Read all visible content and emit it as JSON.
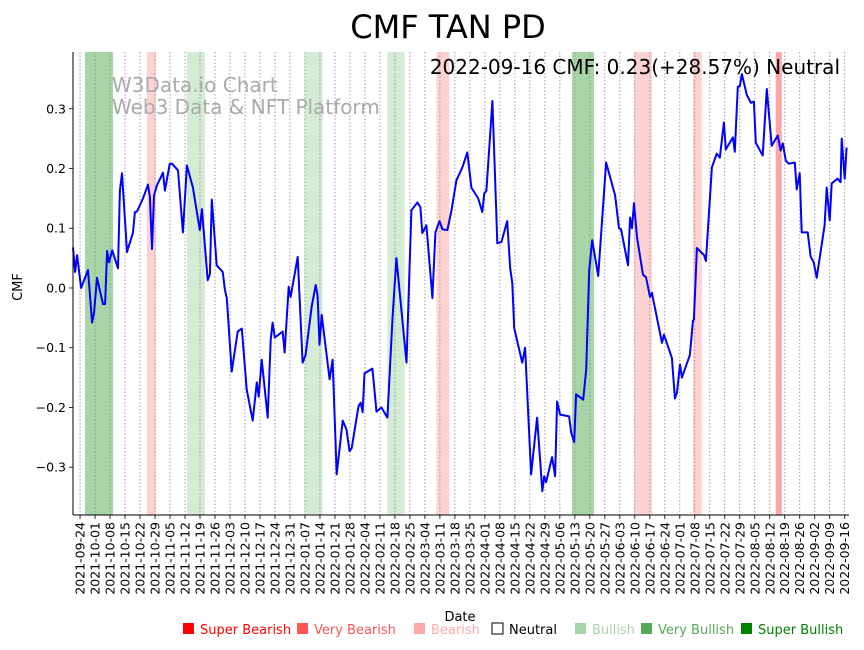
{
  "chart_data": {
    "type": "line",
    "title": "CMF TAN PD",
    "xlabel": "Date",
    "ylabel": "CMF",
    "annotation": "2022-09-16 CMF: 0.23(+28.57%) Neutral",
    "watermark": [
      "W3Data.io Chart",
      "Web3 Data & NFT Platform"
    ],
    "start_date": "2021-09-24",
    "x_unit": "days since start_date",
    "xlim": [
      -3.3,
      359
    ],
    "ylim": [
      -0.38,
      0.395
    ],
    "yticks": [
      -0.3,
      -0.2,
      -0.1,
      0.0,
      0.1,
      0.2,
      0.3
    ],
    "ytick_labels": [
      "−0.3",
      "−0.2",
      "−0.1",
      "0.0",
      "0.1",
      "0.2",
      "0.3"
    ],
    "xtick_labels": [
      "2021-09-24",
      "2021-10-01",
      "2021-10-08",
      "2021-10-15",
      "2021-10-22",
      "2021-10-29",
      "2021-11-05",
      "2021-11-12",
      "2021-11-19",
      "2021-11-26",
      "2021-12-03",
      "2021-12-10",
      "2021-12-17",
      "2021-12-24",
      "2021-12-31",
      "2022-01-07",
      "2022-01-14",
      "2022-01-21",
      "2022-01-28",
      "2022-02-04",
      "2022-02-11",
      "2022-02-18",
      "2022-02-25",
      "2022-03-04",
      "2022-03-11",
      "2022-03-18",
      "2022-03-25",
      "2022-04-01",
      "2022-04-08",
      "2022-04-15",
      "2022-04-22",
      "2022-04-29",
      "2022-05-06",
      "2022-05-13",
      "2022-05-20",
      "2022-05-27",
      "2022-06-03",
      "2022-06-10",
      "2022-06-17",
      "2022-06-24",
      "2022-07-01",
      "2022-07-08",
      "2022-07-15",
      "2022-07-22",
      "2022-07-29",
      "2022-08-05",
      "2022-08-12",
      "2022-08-19",
      "2022-08-26",
      "2022-09-02",
      "2022-09-09",
      "2022-09-16"
    ],
    "grid": "vertical dotted at weekly ticks",
    "series": [
      {
        "name": "CMF",
        "color": "#0000ff",
        "points": [
          [
            -3.3,
            0.068
          ],
          [
            -2.3,
            0.027
          ],
          [
            -1.4,
            0.055
          ],
          [
            0.5,
            0
          ],
          [
            3.7,
            0.03
          ],
          [
            5.6,
            -0.058
          ],
          [
            6.5,
            -0.042
          ],
          [
            7.9,
            0.017
          ],
          [
            10.7,
            -0.027
          ],
          [
            11.7,
            -0.027
          ],
          [
            12.6,
            0.062
          ],
          [
            13.5,
            0.043
          ],
          [
            15,
            0.063
          ],
          [
            17.7,
            0.033
          ],
          [
            18.6,
            0.163
          ],
          [
            19.6,
            0.192
          ],
          [
            21.9,
            0.06
          ],
          [
            24.7,
            0.093
          ],
          [
            25.6,
            0.127
          ],
          [
            26.6,
            0.128
          ],
          [
            29.4,
            0.15
          ],
          [
            31.7,
            0.173
          ],
          [
            32.6,
            0.152
          ],
          [
            33.6,
            0.065
          ],
          [
            34.5,
            0.155
          ],
          [
            35.9,
            0.172
          ],
          [
            38.7,
            0.193
          ],
          [
            39.6,
            0.163
          ],
          [
            41.9,
            0.208
          ],
          [
            42.9,
            0.208
          ],
          [
            45.7,
            0.197
          ],
          [
            48,
            0.093
          ],
          [
            49.9,
            0.205
          ],
          [
            52.7,
            0.168
          ],
          [
            55.9,
            0.097
          ],
          [
            56.9,
            0.132
          ],
          [
            59.6,
            0.013
          ],
          [
            60.6,
            0.023
          ],
          [
            61.5,
            0.148
          ],
          [
            63.8,
            0.038
          ],
          [
            66.6,
            0.027
          ],
          [
            67.6,
            -0.003
          ],
          [
            68.5,
            -0.017
          ],
          [
            70.8,
            -0.14
          ],
          [
            73.6,
            -0.073
          ],
          [
            75.5,
            -0.068
          ],
          [
            77.8,
            -0.17
          ],
          [
            80.6,
            -0.222
          ],
          [
            82.5,
            -0.158
          ],
          [
            83.4,
            -0.182
          ],
          [
            84.8,
            -0.12
          ],
          [
            87.6,
            -0.217
          ],
          [
            89,
            -0.087
          ],
          [
            89.9,
            -0.058
          ],
          [
            90.9,
            -0.083
          ],
          [
            94.6,
            -0.073
          ],
          [
            95.5,
            -0.108
          ],
          [
            97.4,
            0.002
          ],
          [
            98.3,
            -0.015
          ],
          [
            101.6,
            0.052
          ],
          [
            103.9,
            -0.125
          ],
          [
            105.3,
            -0.112
          ],
          [
            108.1,
            -0.032
          ],
          [
            110,
            0.005
          ],
          [
            110.9,
            -0.013
          ],
          [
            111.8,
            -0.095
          ],
          [
            112.8,
            -0.045
          ],
          [
            116.5,
            -0.153
          ],
          [
            117.9,
            -0.12
          ],
          [
            119.8,
            -0.312
          ],
          [
            122.6,
            -0.222
          ],
          [
            124.4,
            -0.237
          ],
          [
            125.8,
            -0.273
          ],
          [
            126.8,
            -0.268
          ],
          [
            130,
            -0.198
          ],
          [
            131,
            -0.192
          ],
          [
            131.9,
            -0.208
          ],
          [
            132.8,
            -0.143
          ],
          [
            136.5,
            -0.135
          ],
          [
            138.4,
            -0.207
          ],
          [
            140.7,
            -0.2
          ],
          [
            143.5,
            -0.217
          ],
          [
            145.9,
            -0.048
          ],
          [
            147.7,
            0.05
          ],
          [
            152.4,
            -0.125
          ],
          [
            154.7,
            0.13
          ],
          [
            157.5,
            0.143
          ],
          [
            158.9,
            0.135
          ],
          [
            159.8,
            0.092
          ],
          [
            161.7,
            0.105
          ],
          [
            164.5,
            -0.017
          ],
          [
            165.9,
            0.093
          ],
          [
            167.8,
            0.112
          ],
          [
            169.2,
            0.098
          ],
          [
            171.5,
            0.097
          ],
          [
            173.4,
            0.13
          ],
          [
            175.7,
            0.18
          ],
          [
            178.5,
            0.202
          ],
          [
            180.8,
            0.227
          ],
          [
            182.7,
            0.168
          ],
          [
            185.9,
            0.15
          ],
          [
            187.8,
            0.127
          ],
          [
            188.7,
            0.158
          ],
          [
            189.7,
            0.163
          ],
          [
            192.5,
            0.313
          ],
          [
            194.3,
            0.13
          ],
          [
            194.8,
            0.075
          ],
          [
            196.7,
            0.077
          ],
          [
            199.4,
            0.112
          ],
          [
            200.8,
            0.033
          ],
          [
            201.8,
            0.008
          ],
          [
            202.7,
            -0.067
          ],
          [
            206.4,
            -0.125
          ],
          [
            207.8,
            -0.1
          ],
          [
            210.6,
            -0.312
          ],
          [
            213.4,
            -0.217
          ],
          [
            215.8,
            -0.34
          ],
          [
            216.7,
            -0.315
          ],
          [
            217.6,
            -0.325
          ],
          [
            220.4,
            -0.283
          ],
          [
            221.8,
            -0.315
          ],
          [
            222.7,
            -0.19
          ],
          [
            224.1,
            -0.212
          ],
          [
            228.3,
            -0.215
          ],
          [
            229.3,
            -0.242
          ],
          [
            230.7,
            -0.258
          ],
          [
            231.6,
            -0.178
          ],
          [
            234.9,
            -0.187
          ],
          [
            236.3,
            -0.137
          ],
          [
            237.7,
            0.03
          ],
          [
            239.1,
            0.08
          ],
          [
            241.9,
            0.02
          ],
          [
            245.6,
            0.21
          ],
          [
            249.8,
            0.155
          ],
          [
            251.6,
            0.1
          ],
          [
            252.6,
            0.098
          ],
          [
            255.8,
            0.038
          ],
          [
            256.8,
            0.118
          ],
          [
            257.7,
            0.1
          ],
          [
            258.6,
            0.142
          ],
          [
            260,
            0.085
          ],
          [
            262.8,
            0.022
          ],
          [
            264.2,
            0.018
          ],
          [
            266.1,
            -0.015
          ],
          [
            267,
            -0.008
          ],
          [
            271.7,
            -0.092
          ],
          [
            272.6,
            -0.078
          ],
          [
            276.3,
            -0.117
          ],
          [
            277.7,
            -0.185
          ],
          [
            278.7,
            -0.175
          ],
          [
            280.1,
            -0.128
          ],
          [
            281,
            -0.15
          ],
          [
            284.7,
            -0.112
          ],
          [
            286.1,
            -0.055
          ],
          [
            286.6,
            -0.053
          ],
          [
            288,
            0.067
          ],
          [
            291.3,
            0.055
          ],
          [
            292.2,
            0.045
          ],
          [
            295,
            0.202
          ],
          [
            297.3,
            0.225
          ],
          [
            298.7,
            0.218
          ],
          [
            300.6,
            0.277
          ],
          [
            301.5,
            0.232
          ],
          [
            304.8,
            0.252
          ],
          [
            305.7,
            0.228
          ],
          [
            307.1,
            0.337
          ],
          [
            308,
            0.338
          ],
          [
            309,
            0.358
          ],
          [
            311.3,
            0.323
          ],
          [
            313.2,
            0.31
          ],
          [
            314.6,
            0.312
          ],
          [
            315.5,
            0.243
          ],
          [
            318.7,
            0.222
          ],
          [
            320.6,
            0.333
          ],
          [
            322.9,
            0.238
          ],
          [
            325.7,
            0.255
          ],
          [
            327.1,
            0.23
          ],
          [
            328.1,
            0.242
          ],
          [
            329.5,
            0.213
          ],
          [
            330.9,
            0.208
          ],
          [
            333.7,
            0.21
          ],
          [
            334.6,
            0.165
          ],
          [
            336,
            0.192
          ],
          [
            336.9,
            0.093
          ],
          [
            339.7,
            0.093
          ],
          [
            341.1,
            0.052
          ],
          [
            342.5,
            0.043
          ],
          [
            343.9,
            0.017
          ],
          [
            347.6,
            0.105
          ],
          [
            348.6,
            0.168
          ],
          [
            350,
            0.113
          ],
          [
            350.9,
            0.175
          ],
          [
            353.7,
            0.183
          ],
          [
            355.1,
            0.177
          ],
          [
            355.6,
            0.25
          ],
          [
            357,
            0.183
          ],
          [
            357.9,
            0.235
          ]
        ]
      }
    ],
    "signal_bands": [
      {
        "signal": "Very Bullish",
        "start": 2.3,
        "end": 15.4
      },
      {
        "signal": "Bearish",
        "start": 31.2,
        "end": 35.4
      },
      {
        "signal": "Bullish",
        "start": 49.9,
        "end": 58.3
      },
      {
        "signal": "Bullish",
        "start": 104.8,
        "end": 113.2
      },
      {
        "signal": "Bullish",
        "start": 143.5,
        "end": 151.5
      },
      {
        "signal": "Bearish",
        "start": 166.4,
        "end": 172.4
      },
      {
        "signal": "Very Bullish",
        "start": 229.7,
        "end": 240
      },
      {
        "signal": "Bearish",
        "start": 258.6,
        "end": 267
      },
      {
        "signal": "Bearish",
        "start": 286.1,
        "end": 290.3
      },
      {
        "signal": "Very Bearish",
        "start": 324.8,
        "end": 327.6
      }
    ],
    "legend": {
      "placement": "bottom",
      "items": [
        {
          "label": "Super Bearish",
          "color": "#ff0000",
          "text_color": "#ff0000"
        },
        {
          "label": "Very Bearish",
          "color": "#ff5555",
          "text_color": "#ff5555"
        },
        {
          "label": "Bearish",
          "color": "#ffaaaa",
          "text_color": "#ffaaaa"
        },
        {
          "label": "Neutral",
          "color": "#ffffff",
          "text_color": "#000000"
        },
        {
          "label": "Bullish",
          "color": "#aad5aa",
          "text_color": "#aad5aa"
        },
        {
          "label": "Very Bullish",
          "color": "#55aa55",
          "text_color": "#55aa55"
        },
        {
          "label": "Super Bullish",
          "color": "#008000",
          "text_color": "#008000"
        }
      ]
    },
    "band_colors": {
      "Very Bullish": "#a8d5a8",
      "Bullish": "#d4ebd4",
      "Bearish": "#ffd2d2",
      "Very Bearish": "#ffa5a5"
    }
  }
}
